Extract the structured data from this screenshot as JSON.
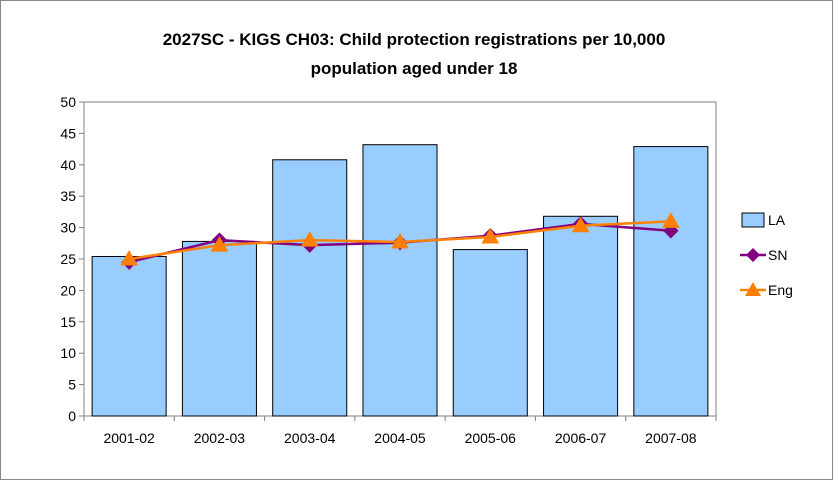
{
  "chart_data": {
    "type": "bar",
    "title": "2027SC - KIGS CH03: Child protection registrations per 10,000 population aged under 18",
    "title_lines": [
      "2027SC - KIGS CH03: Child protection registrations per 10,000",
      "population aged under 18"
    ],
    "categories": [
      "2001-02",
      "2002-03",
      "2003-04",
      "2004-05",
      "2005-06",
      "2006-07",
      "2007-08"
    ],
    "ylim": [
      0,
      50
    ],
    "yticks": [
      0,
      5,
      10,
      15,
      20,
      25,
      30,
      35,
      40,
      45,
      50
    ],
    "grid": false,
    "legend_position": "right",
    "series": [
      {
        "name": "LA",
        "kind": "bar",
        "color": "#99ccff",
        "edge": "#000000",
        "values": [
          25.4,
          27.8,
          40.8,
          43.2,
          26.5,
          31.8,
          42.9
        ]
      },
      {
        "name": "SN",
        "kind": "line",
        "color": "#800080",
        "marker": "diamond",
        "values": [
          24.5,
          28.0,
          27.2,
          27.6,
          28.7,
          30.6,
          29.5
        ]
      },
      {
        "name": "Eng",
        "kind": "line",
        "color": "#ff8000",
        "marker": "triangle",
        "values": [
          25.0,
          27.2,
          28.0,
          27.7,
          28.5,
          30.3,
          31.0
        ]
      }
    ]
  }
}
